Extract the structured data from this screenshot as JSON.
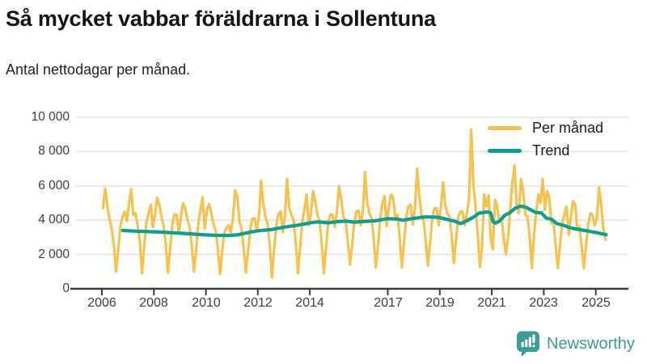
{
  "chart_data": {
    "type": "line",
    "title": "Så mycket vabbar föräldrarna i Sollentuna",
    "subtitle": "Antal nettodagar per månad.",
    "grid": "horizontal",
    "legend_position": "top-right",
    "colors": {
      "grid": "#e4e4e4",
      "axis": "#3b3b3b",
      "tick_label": "#3d3d3d"
    },
    "x_axis": {
      "ticks": [
        2006,
        2008,
        2010,
        2012,
        2014,
        2017,
        2019,
        2021,
        2023,
        2025
      ],
      "labels": [
        "2006",
        "2008",
        "2010",
        "2012",
        "2014",
        "2017",
        "2019",
        "2021",
        "2023",
        "2025"
      ],
      "range": [
        2005.9,
        2026.3
      ]
    },
    "y_axis": {
      "ticks": [
        0,
        2000,
        4000,
        6000,
        8000,
        10000
      ],
      "labels": [
        "0",
        "2 000",
        "4 000",
        "6 000",
        "8 000",
        "10 000"
      ],
      "range": [
        0,
        10000
      ]
    },
    "series": [
      {
        "name": "Per månad",
        "color": "#F5C24F",
        "frequency": "monthly",
        "start": "2006-01",
        "end": "2025-05",
        "values": [
          4700,
          5850,
          4800,
          4100,
          3500,
          2600,
          1000,
          2200,
          3600,
          4200,
          4500,
          3950,
          5000,
          5800,
          4300,
          4400,
          3700,
          2800,
          900,
          2400,
          3800,
          4400,
          4900,
          3600,
          4300,
          5300,
          4900,
          4200,
          3700,
          2600,
          950,
          2300,
          3700,
          4350,
          4300,
          3300,
          4200,
          5000,
          4700,
          4000,
          3600,
          2500,
          1000,
          2200,
          3800,
          4600,
          5350,
          3500,
          4600,
          4950,
          4400,
          3800,
          3400,
          2400,
          850,
          2100,
          3300,
          3550,
          3700,
          3300,
          4100,
          5750,
          5400,
          3900,
          3500,
          2300,
          950,
          2200,
          3500,
          4100,
          4100,
          3400,
          4200,
          6300,
          5000,
          4200,
          3800,
          2500,
          650,
          2300,
          3700,
          4350,
          4500,
          3300,
          4300,
          6400,
          4700,
          4300,
          4000,
          2700,
          900,
          2400,
          3900,
          4600,
          5500,
          3700,
          4400,
          5700,
          5100,
          4300,
          3900,
          2600,
          900,
          2400,
          3900,
          4350,
          4300,
          3600,
          4500,
          6000,
          5200,
          4200,
          4000,
          2800,
          1400,
          2500,
          3900,
          4500,
          4550,
          3700,
          4600,
          6800,
          5000,
          4400,
          4100,
          2900,
          1250,
          2600,
          4100,
          5000,
          5400,
          3650,
          4800,
          5500,
          5300,
          4200,
          4300,
          2900,
          1250,
          2700,
          4200,
          4800,
          4900,
          3750,
          4700,
          7000,
          5500,
          4300,
          4000,
          2800,
          1350,
          2700,
          4100,
          4700,
          4700,
          3700,
          4800,
          6200,
          4900,
          4400,
          4200,
          3000,
          1500,
          2800,
          4200,
          4500,
          4500,
          3700,
          4400,
          5300,
          9300,
          6100,
          4800,
          3200,
          1270,
          2450,
          5500,
          4800,
          5450,
          2900,
          2300,
          5200,
          4800,
          3900,
          4100,
          3000,
          2000,
          3000,
          4600,
          6200,
          7200,
          4850,
          4400,
          6400,
          5700,
          4300,
          4200,
          3000,
          1200,
          3100,
          4500,
          5500,
          5000,
          6400,
          4600,
          5700,
          5350,
          3800,
          3900,
          2500,
          1200,
          2600,
          3800,
          4300,
          4800,
          3150,
          4200,
          5100,
          4900,
          3500,
          3600,
          2400,
          1200,
          2500,
          3800,
          4400,
          4300,
          3700,
          4100,
          5900,
          4900,
          3500,
          2850
        ]
      },
      {
        "name": "Trend",
        "color": "#129C8F",
        "points": [
          [
            2006.8,
            3400
          ],
          [
            2007.3,
            3360
          ],
          [
            2007.8,
            3330
          ],
          [
            2008.3,
            3300
          ],
          [
            2008.8,
            3260
          ],
          [
            2009.3,
            3210
          ],
          [
            2009.8,
            3160
          ],
          [
            2010.3,
            3120
          ],
          [
            2010.8,
            3110
          ],
          [
            2011.2,
            3140
          ],
          [
            2011.6,
            3270
          ],
          [
            2012.0,
            3380
          ],
          [
            2012.5,
            3450
          ],
          [
            2013.0,
            3590
          ],
          [
            2013.5,
            3700
          ],
          [
            2014.0,
            3840
          ],
          [
            2014.3,
            3900
          ],
          [
            2014.7,
            3850
          ],
          [
            2015.1,
            3920
          ],
          [
            2015.4,
            3950
          ],
          [
            2015.7,
            3880
          ],
          [
            2016.0,
            3920
          ],
          [
            2016.5,
            3960
          ],
          [
            2017.0,
            4090
          ],
          [
            2017.3,
            4070
          ],
          [
            2017.6,
            4000
          ],
          [
            2018.0,
            4110
          ],
          [
            2018.4,
            4190
          ],
          [
            2018.8,
            4180
          ],
          [
            2019.0,
            4150
          ],
          [
            2019.3,
            4040
          ],
          [
            2019.6,
            3930
          ],
          [
            2019.8,
            3800
          ],
          [
            2020.0,
            3940
          ],
          [
            2020.3,
            4180
          ],
          [
            2020.5,
            4400
          ],
          [
            2020.8,
            4480
          ],
          [
            2020.95,
            4440
          ],
          [
            2021.05,
            3900
          ],
          [
            2021.15,
            3830
          ],
          [
            2021.3,
            3950
          ],
          [
            2021.5,
            4290
          ],
          [
            2021.7,
            4440
          ],
          [
            2021.9,
            4700
          ],
          [
            2022.1,
            4810
          ],
          [
            2022.3,
            4760
          ],
          [
            2022.5,
            4600
          ],
          [
            2022.7,
            4450
          ],
          [
            2022.9,
            4430
          ],
          [
            2023.1,
            4120
          ],
          [
            2023.3,
            4050
          ],
          [
            2023.5,
            3800
          ],
          [
            2023.8,
            3680
          ],
          [
            2024.0,
            3560
          ],
          [
            2024.3,
            3470
          ],
          [
            2024.6,
            3390
          ],
          [
            2024.9,
            3310
          ],
          [
            2025.1,
            3250
          ],
          [
            2025.4,
            3150
          ]
        ]
      }
    ]
  },
  "footer": {
    "brand": "Newsworthy",
    "brand_color": "#3d9c95"
  }
}
